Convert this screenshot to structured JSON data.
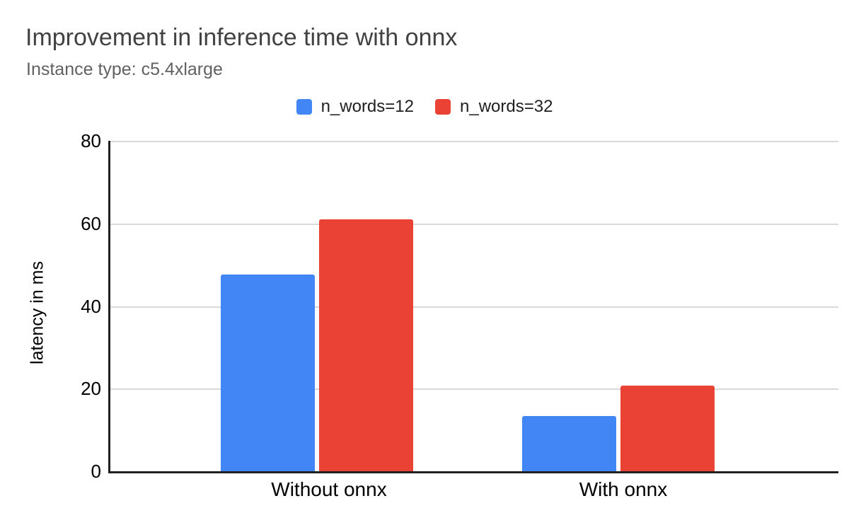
{
  "header": {
    "title": "Improvement in inference time with onnx",
    "subtitle": "Instance type: c5.4xlarge"
  },
  "chart_data": {
    "type": "bar",
    "title": "Improvement in inference time with onnx",
    "subtitle": "Instance type: c5.4xlarge",
    "categories": [
      "Without onnx",
      "With onnx"
    ],
    "series": [
      {
        "name": "n_words=12",
        "color": "#4285F4",
        "values": [
          47.6,
          13.3
        ]
      },
      {
        "name": "n_words=32",
        "color": "#EA4335",
        "values": [
          61.0,
          20.7
        ]
      }
    ],
    "xlabel": "",
    "ylabel": "latency in ms",
    "ylim": [
      0,
      80
    ],
    "yticks": [
      0,
      20,
      40,
      60,
      80
    ],
    "grid": "horizontal",
    "legend_position": "top-center",
    "colors": {
      "gridline": "#d9d9d9",
      "axis": "#212121",
      "title_text": "#424242",
      "subtitle_text": "#616161",
      "tick_text": "#000000"
    }
  }
}
